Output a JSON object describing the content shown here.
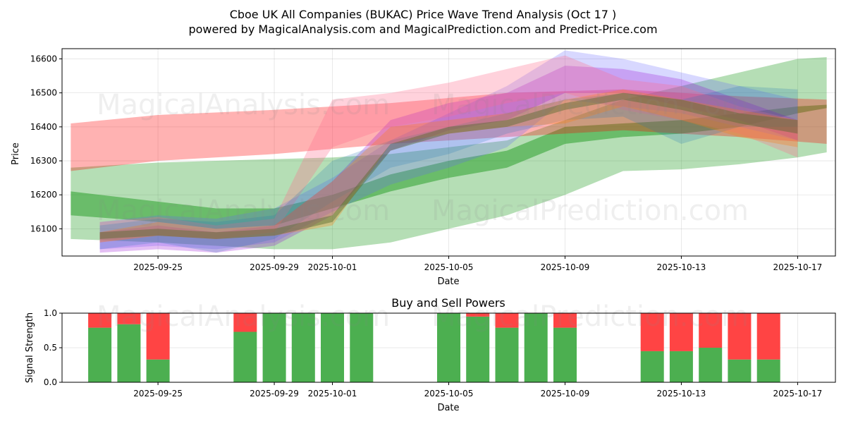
{
  "header": {
    "title": "Cboe UK All Companies (BUKAC) Price Wave Trend Analysis (Oct 17 )",
    "subtitle": "powered by MagicalAnalysis.com and MagicalPrediction.com and Predict-Price.com"
  },
  "watermarks": [
    "MagicalAnalysis.com",
    "MagicalPrediction.com"
  ],
  "chart_data": [
    {
      "type": "area",
      "name": "price-wave-chart",
      "xlabel": "Date",
      "ylabel": "Price",
      "x_ticks": [
        "2025-09-25",
        "2025-09-29",
        "2025-10-01",
        "2025-10-05",
        "2025-10-09",
        "2025-10-13",
        "2025-10-17"
      ],
      "y_ticks": [
        16100,
        16200,
        16300,
        16400,
        16500,
        16600
      ],
      "xlim": [
        -3.3,
        23.3
      ],
      "ylim": [
        16020,
        16630
      ],
      "grid": true,
      "series": [
        {
          "name": "green-lower",
          "color": "#2ca02c",
          "alpha": 0.35,
          "x": [
            -3,
            0,
            2,
            4,
            6,
            8,
            10,
            12,
            14,
            16,
            18,
            20,
            22,
            23
          ],
          "upper": [
            16280,
            16295,
            16300,
            16305,
            16310,
            16320,
            16340,
            16360,
            16420,
            16480,
            16520,
            16560,
            16600,
            16605
          ],
          "lower": [
            16070,
            16060,
            16050,
            16040,
            16040,
            16060,
            16100,
            16140,
            16200,
            16270,
            16275,
            16290,
            16310,
            16325
          ]
        },
        {
          "name": "green-trend",
          "color": "#2ca02c",
          "alpha": 0.55,
          "x": [
            -3,
            0,
            2,
            4,
            6,
            8,
            10,
            12,
            14,
            16,
            18,
            20,
            22,
            23
          ],
          "upper": [
            16210,
            16180,
            16160,
            16160,
            16200,
            16260,
            16300,
            16330,
            16400,
            16410,
            16420,
            16440,
            16460,
            16465
          ],
          "lower": [
            16140,
            16120,
            16100,
            16110,
            16160,
            16210,
            16250,
            16280,
            16350,
            16370,
            16380,
            16400,
            16440,
            16455
          ]
        },
        {
          "name": "red-upper",
          "color": "#ff0000",
          "alpha": 0.3,
          "x": [
            -3,
            0,
            4,
            8,
            12,
            16,
            20,
            23
          ],
          "upper": [
            16410,
            16435,
            16450,
            16470,
            16500,
            16510,
            16490,
            16480
          ],
          "lower": [
            16270,
            16300,
            16320,
            16350,
            16370,
            16390,
            16370,
            16350
          ]
        },
        {
          "name": "blue-wave",
          "color": "#6464ff",
          "alpha": 0.25,
          "x": [
            -2,
            0,
            2,
            4,
            6,
            8,
            10,
            12,
            14,
            16,
            18,
            20,
            22
          ],
          "upper": [
            16120,
            16140,
            16130,
            16160,
            16250,
            16360,
            16440,
            16520,
            16625,
            16600,
            16560,
            16520,
            16480
          ],
          "lower": [
            16040,
            16050,
            16040,
            16060,
            16150,
            16230,
            16280,
            16340,
            16480,
            16460,
            16440,
            16400,
            16360
          ]
        },
        {
          "name": "purple-wave",
          "color": "#9400d3",
          "alpha": 0.25,
          "x": [
            -2,
            0,
            2,
            4,
            6,
            8,
            10,
            12,
            14,
            16,
            18,
            20,
            22
          ],
          "upper": [
            16090,
            16110,
            16090,
            16110,
            16240,
            16420,
            16470,
            16500,
            16580,
            16570,
            16540,
            16480,
            16420
          ],
          "lower": [
            16030,
            16040,
            16030,
            16050,
            16140,
            16330,
            16390,
            16420,
            16500,
            16500,
            16460,
            16420,
            16360
          ]
        },
        {
          "name": "pink-wave",
          "color": "#ff6b8a",
          "alpha": 0.3,
          "x": [
            -2,
            0,
            2,
            4,
            6,
            8,
            10,
            12,
            14,
            16,
            18,
            20,
            22
          ],
          "upper": [
            16120,
            16135,
            16110,
            16130,
            16480,
            16500,
            16530,
            16570,
            16610,
            16540,
            16520,
            16460,
            16420
          ],
          "lower": [
            16060,
            16080,
            16070,
            16090,
            16340,
            16400,
            16430,
            16470,
            16500,
            16450,
            16420,
            16380,
            16310
          ]
        },
        {
          "name": "teal-wave",
          "color": "#1f77b4",
          "alpha": 0.22,
          "x": [
            -2,
            0,
            2,
            4,
            6,
            8,
            10,
            12,
            14,
            16,
            18,
            20,
            22
          ],
          "upper": [
            16110,
            16130,
            16120,
            16140,
            16300,
            16360,
            16400,
            16440,
            16480,
            16500,
            16480,
            16520,
            16510
          ],
          "lower": [
            16040,
            16060,
            16030,
            16070,
            16180,
            16280,
            16320,
            16380,
            16420,
            16430,
            16350,
            16400,
            16400
          ]
        },
        {
          "name": "orange-wave",
          "color": "#ff7f0e",
          "alpha": 0.3,
          "x": [
            -2,
            0,
            2,
            4,
            6,
            8,
            10,
            12,
            14,
            16,
            18,
            20,
            22
          ],
          "upper": [
            16090,
            16120,
            16100,
            16110,
            16240,
            16400,
            16420,
            16440,
            16480,
            16510,
            16480,
            16450,
            16420
          ],
          "lower": [
            16060,
            16080,
            16070,
            16080,
            16110,
            16350,
            16380,
            16400,
            16410,
            16460,
            16420,
            16370,
            16340
          ]
        },
        {
          "name": "dark-trend",
          "color": "#556b2f",
          "alpha": 0.45,
          "x": [
            -2,
            0,
            2,
            4,
            6,
            8,
            10,
            12,
            14,
            16,
            18,
            20,
            22
          ],
          "upper": [
            16090,
            16100,
            16090,
            16100,
            16140,
            16350,
            16400,
            16420,
            16470,
            16500,
            16480,
            16440,
            16420
          ],
          "lower": [
            16070,
            16080,
            16070,
            16080,
            16120,
            16330,
            16380,
            16400,
            16450,
            16480,
            16450,
            16410,
            16380
          ]
        }
      ]
    },
    {
      "type": "bar",
      "name": "buy-sell-chart",
      "title": "Buy and Sell Powers",
      "xlabel": "Date",
      "ylabel": "Signal Strength",
      "x_ticks": [
        "2025-09-25",
        "2025-09-29",
        "2025-10-01",
        "2025-10-05",
        "2025-10-09",
        "2025-10-13",
        "2025-10-17"
      ],
      "y_ticks": [
        "0.0",
        "0.5",
        "1.0"
      ],
      "ylim": [
        0,
        1
      ],
      "xlim": [
        -3.3,
        23.3
      ],
      "buy_color": "#4caf50",
      "sell_color": "#ff4444",
      "x": [
        -2,
        -1,
        0,
        3,
        4,
        5,
        6,
        7,
        10,
        11,
        12,
        13,
        14,
        17,
        18,
        19,
        20,
        21
      ],
      "buy": [
        0.79,
        0.84,
        0.33,
        0.73,
        1.0,
        1.0,
        1.0,
        1.0,
        1.0,
        0.95,
        0.79,
        1.0,
        0.79,
        0.45,
        0.45,
        0.5,
        0.33,
        0.33
      ],
      "sell": [
        0.21,
        0.16,
        0.67,
        0.27,
        0.0,
        0.0,
        0.0,
        0.0,
        0.0,
        0.05,
        0.21,
        0.0,
        0.21,
        0.55,
        0.55,
        0.5,
        0.67,
        0.67
      ]
    }
  ]
}
